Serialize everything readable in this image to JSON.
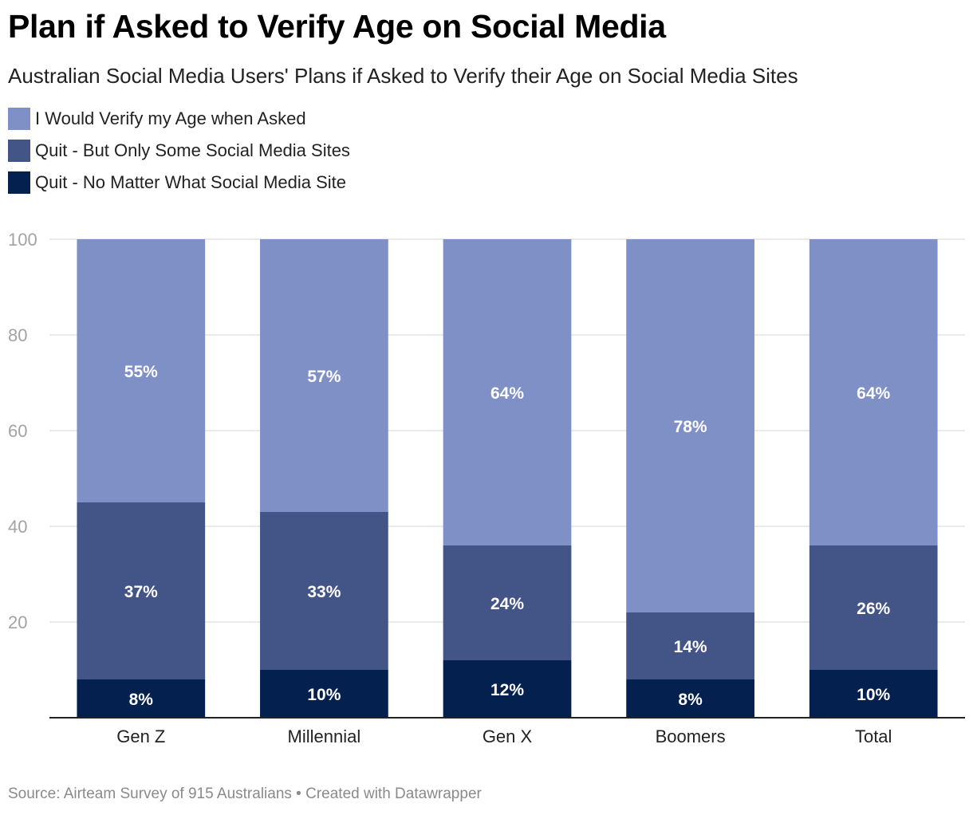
{
  "title": "Plan if Asked to Verify Age on Social Media",
  "subtitle": "Australian Social Media Users' Plans if Asked to Verify their Age on Social Media Sites",
  "footer": "Source: Airteam Survey of 915 Australians • Created with Datawrapper",
  "chart_data": {
    "type": "bar",
    "stacked": true,
    "title": "Plan if Asked to Verify Age on Social Media",
    "subtitle": "Australian Social Media Users' Plans if Asked to Verify their Age on Social Media Sites",
    "categories": [
      "Gen Z",
      "Millennial",
      "Gen X",
      "Boomers",
      "Total"
    ],
    "series": [
      {
        "name": "Quit - No Matter What Social Media Site",
        "color": "#03204f",
        "values": [
          8,
          10,
          12,
          8,
          10
        ],
        "labels": [
          "8%",
          "10%",
          "12%",
          "8%",
          "10%"
        ]
      },
      {
        "name": "Quit - But Only Some Social Media Sites",
        "color": "#435487",
        "values": [
          37,
          33,
          24,
          14,
          26
        ],
        "labels": [
          "37%",
          "33%",
          "24%",
          "14%",
          "26%"
        ]
      },
      {
        "name": "I Would Verify my Age when Asked",
        "color": "#7f90c6",
        "values": [
          55,
          57,
          64,
          78,
          64
        ],
        "labels": [
          "55%",
          "57%",
          "64%",
          "78%",
          "64%"
        ]
      }
    ],
    "legend_order": [
      2,
      1,
      0
    ],
    "legend_position": "top-left",
    "ylim": [
      0,
      100
    ],
    "yticks": [
      20,
      40,
      60,
      80,
      100
    ],
    "grid": true
  }
}
